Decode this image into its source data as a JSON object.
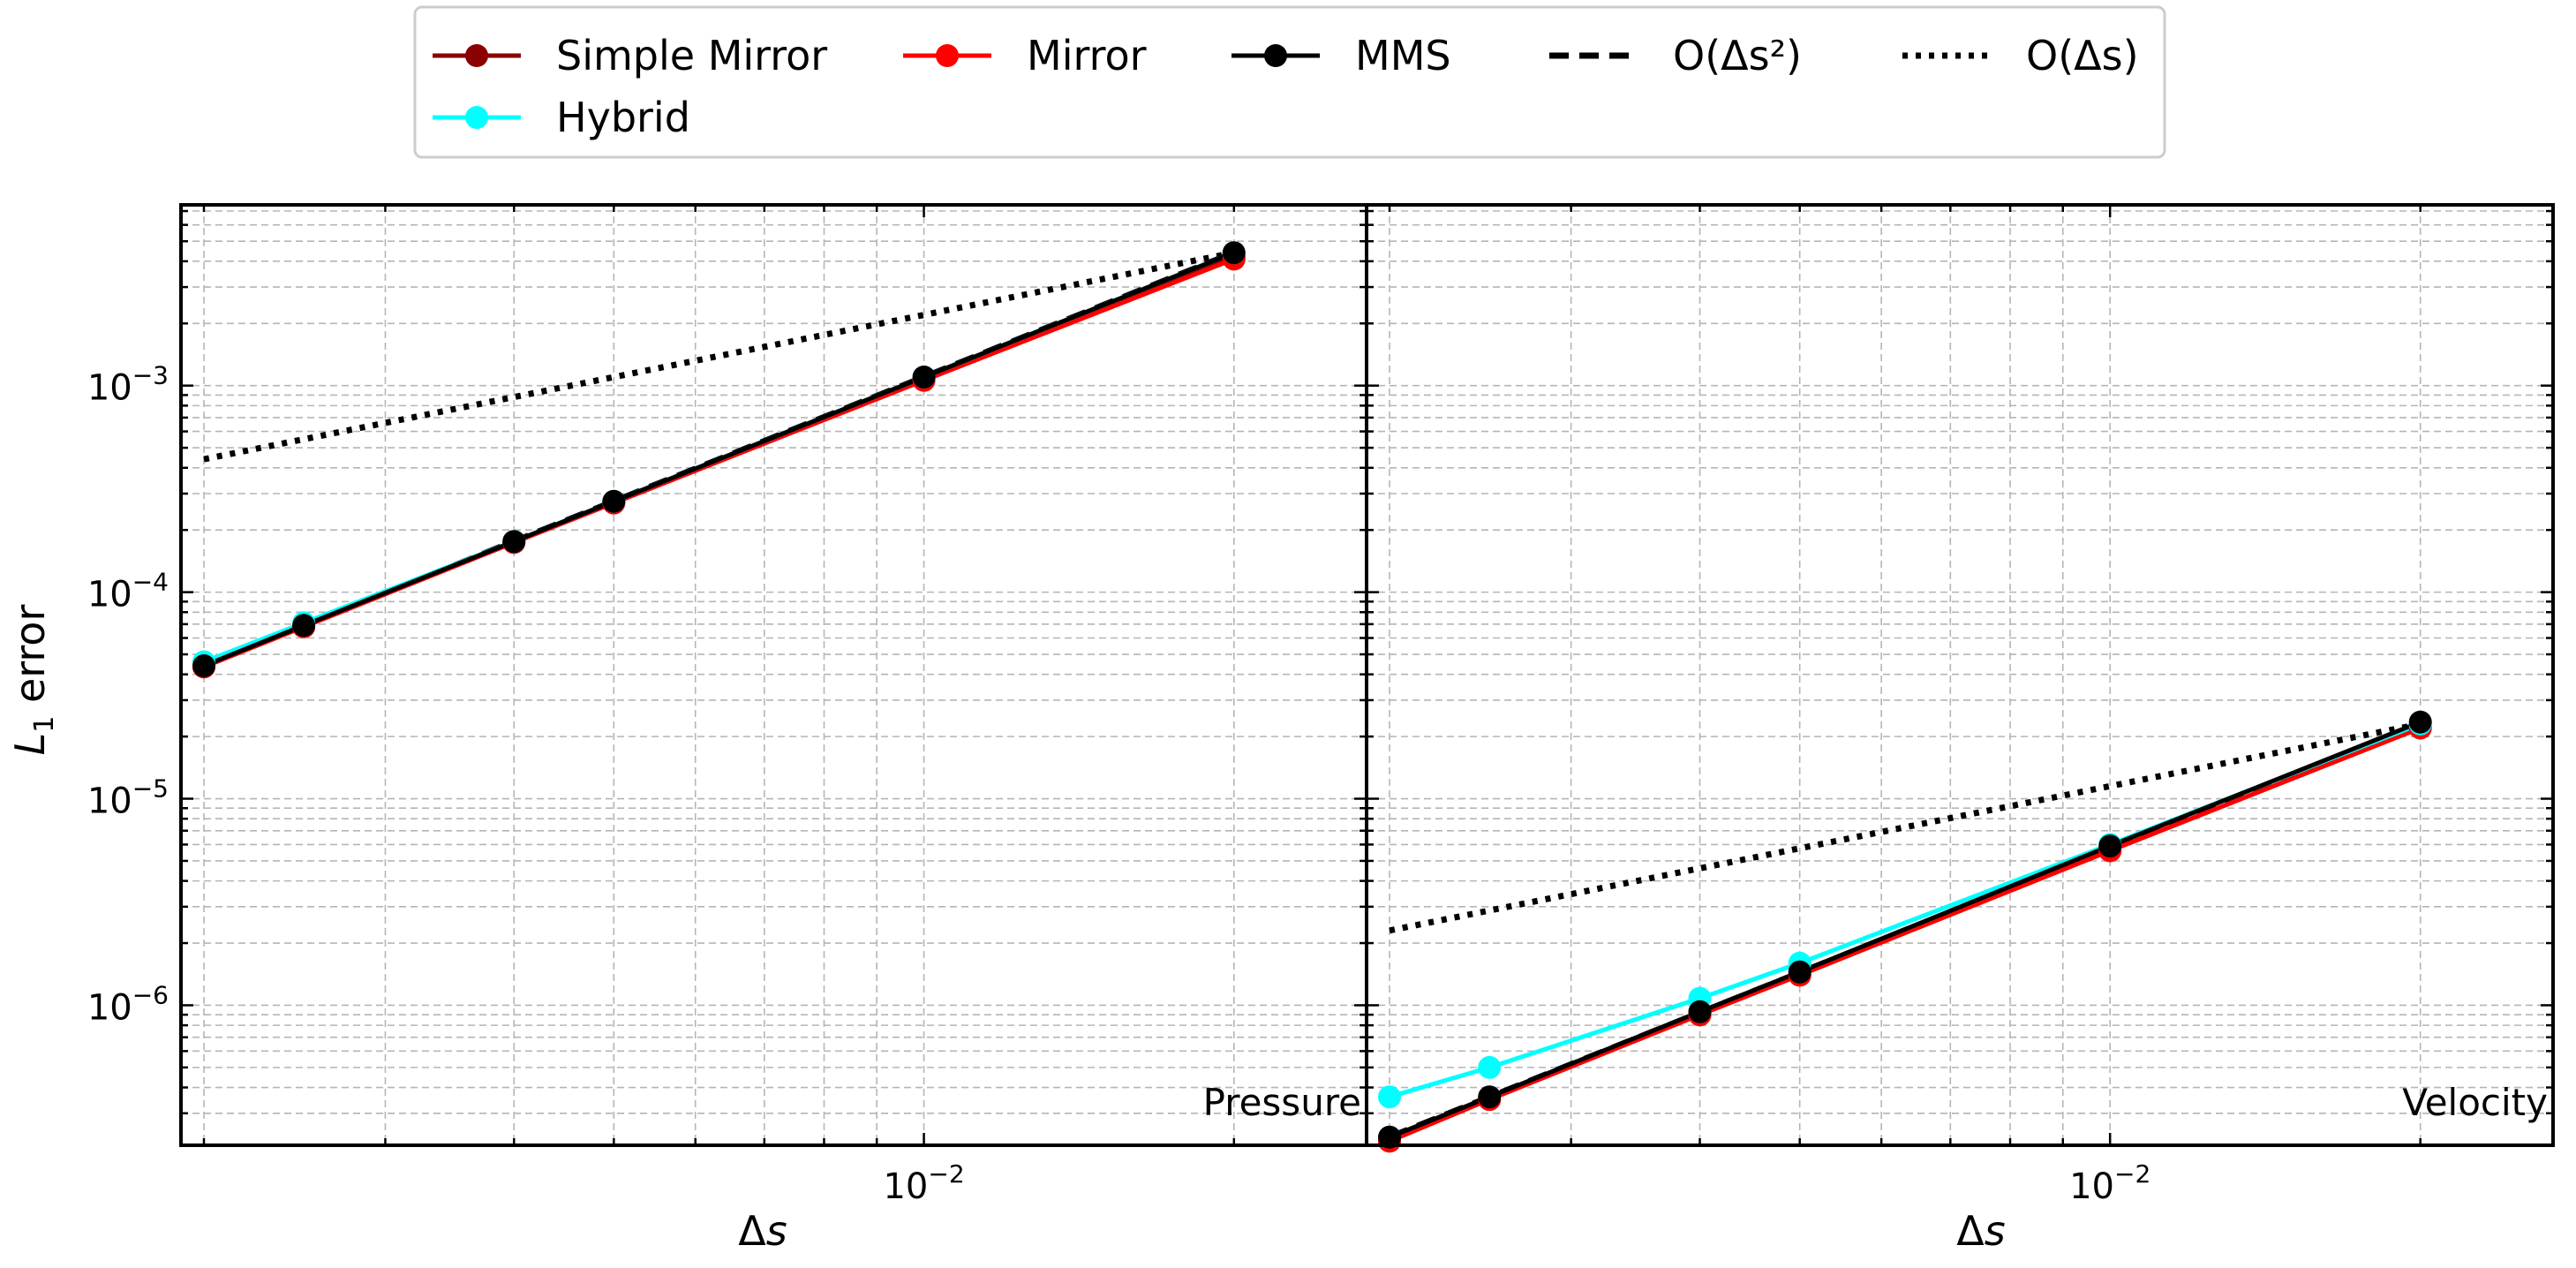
{
  "chart_data": {
    "type": "line",
    "x_scale": "log",
    "y_scale": "log",
    "grid": true,
    "legend_placement": "top-center (above plots)",
    "xlabel": "Δs",
    "ylabel": "L_1 error",
    "xlim": [
      0.0019,
      0.0269
    ],
    "ylim": [
      2.1e-07,
      0.0075
    ],
    "x_tick_labels": [
      {
        "value": 0.01,
        "base": "10",
        "exp": "−2"
      }
    ],
    "y_tick_labels": [
      {
        "value": 0.001,
        "base": "10",
        "exp": "−3"
      },
      {
        "value": 0.0001,
        "base": "10",
        "exp": "−4"
      },
      {
        "value": 1e-05,
        "base": "10",
        "exp": "−5"
      },
      {
        "value": 1e-06,
        "base": "10",
        "exp": "−6"
      }
    ],
    "legend": [
      {
        "label": "Simple Mirror",
        "series": "simple_mirror"
      },
      {
        "label": "Mirror",
        "series": "mirror"
      },
      {
        "label": "MMS",
        "series": "mms"
      },
      {
        "label": "O(Δs²)",
        "series": "order2"
      },
      {
        "label": "O(Δs)",
        "series": "order1"
      },
      {
        "label": "Hybrid",
        "series": "hybrid"
      }
    ],
    "series_styles": {
      "simple_mirror": {
        "color": "#8B0000",
        "dash": "solid",
        "marker": true
      },
      "mirror": {
        "color": "#FF0000",
        "dash": "solid",
        "marker": true
      },
      "mms": {
        "color": "#000000",
        "dash": "solid",
        "marker": true
      },
      "order2": {
        "color": "#000000",
        "dash": "dashed",
        "marker": false
      },
      "order1": {
        "color": "#000000",
        "dash": "dotted",
        "marker": false
      },
      "hybrid": {
        "color": "#00FFFF",
        "dash": "solid",
        "marker": true
      }
    },
    "panels": [
      {
        "label": "Pressure",
        "x": [
          0.002,
          0.0025,
          0.004,
          0.005,
          0.01,
          0.02
        ],
        "series": [
          {
            "key": "order1",
            "name": "O(Δs)",
            "x": [
              0.002,
              0.02
            ],
            "values": [
              0.00044,
              0.0044
            ]
          },
          {
            "key": "order2",
            "name": "O(Δs²)",
            "x": [
              0.002,
              0.02
            ],
            "values": [
              4.4e-05,
              0.0044
            ]
          },
          {
            "key": "simple_mirror",
            "name": "Simple Mirror",
            "values": [
              4.35e-05,
              6.8e-05,
              0.000174,
              0.000272,
              0.00108,
              0.0042
            ]
          },
          {
            "key": "mirror",
            "name": "Mirror",
            "values": [
              4.35e-05,
              6.8e-05,
              0.000174,
              0.00027,
              0.00106,
              0.0041
            ]
          },
          {
            "key": "hybrid",
            "name": "Hybrid",
            "values": [
              4.6e-05,
              7.1e-05,
              0.000176,
              0.000275,
              0.0011,
              0.0044
            ]
          },
          {
            "key": "mms",
            "name": "MMS",
            "values": [
              4.4e-05,
              6.9e-05,
              0.000176,
              0.000275,
              0.0011,
              0.0044
            ]
          }
        ]
      },
      {
        "label": "Velocity",
        "x": [
          0.002,
          0.0025,
          0.004,
          0.005,
          0.01,
          0.02
        ],
        "series": [
          {
            "key": "order1",
            "name": "O(Δs)",
            "x": [
              0.002,
              0.02
            ],
            "values": [
              2.3e-06,
              2.3e-05
            ]
          },
          {
            "key": "order2",
            "name": "O(Δs²)",
            "x": [
              0.002,
              0.02
            ],
            "values": [
              2.3e-07,
              2.3e-05
            ]
          },
          {
            "key": "simple_mirror",
            "name": "Simple Mirror",
            "values": [
              2.2e-07,
              3.5e-07,
              9e-07,
              1.4e-06,
              5.6e-06,
              2.2e-05
            ]
          },
          {
            "key": "mirror",
            "name": "Mirror",
            "values": [
              2.2e-07,
              3.5e-07,
              9e-07,
              1.4e-06,
              5.6e-06,
              2.2e-05
            ]
          },
          {
            "key": "hybrid",
            "name": "Hybrid",
            "values": [
              3.6e-07,
              5e-07,
              1.08e-06,
              1.6e-06,
              6e-06,
              2.3e-05
            ]
          },
          {
            "key": "mms",
            "name": "MMS",
            "values": [
              2.3e-07,
              3.6e-07,
              9.3e-07,
              1.45e-06,
              5.9e-06,
              2.35e-05
            ]
          }
        ]
      }
    ]
  }
}
